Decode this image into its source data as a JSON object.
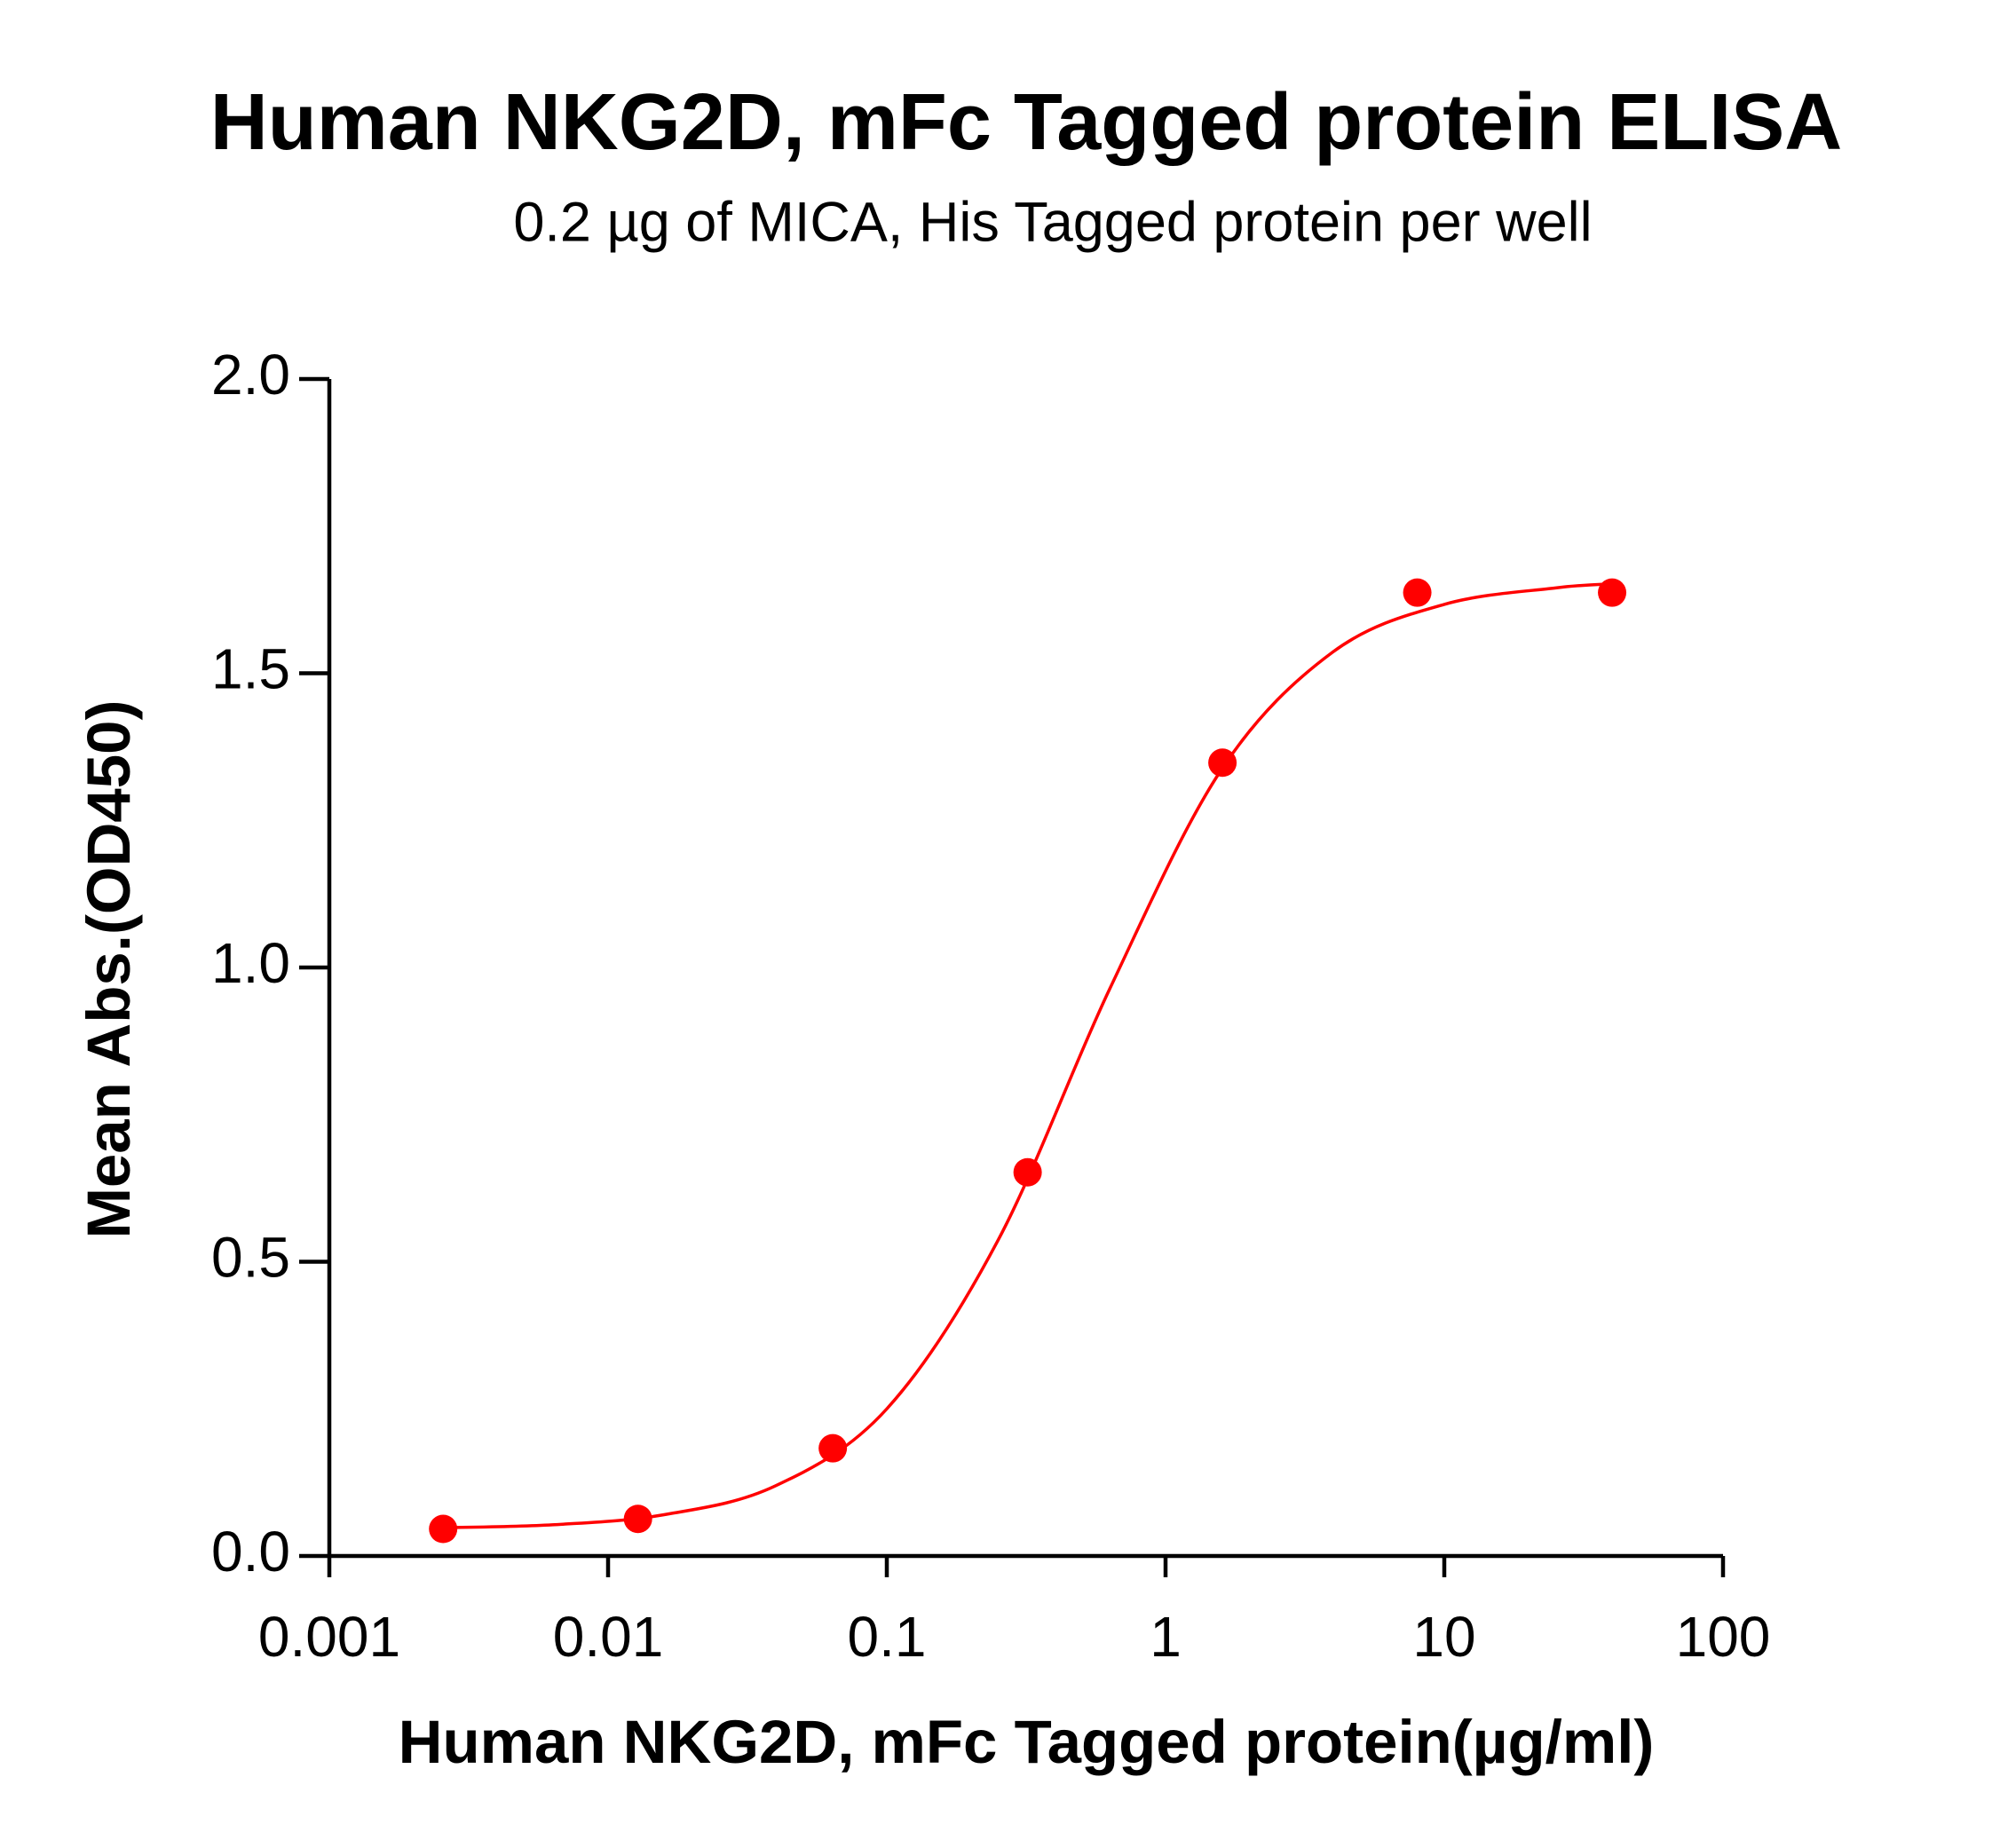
{
  "chart_data": {
    "type": "scatter",
    "title": "Human NKG2D, mFc Tagged protein ELISA",
    "subtitle": "0.2 µg of MICA, His Tagged protein per well",
    "x_label": "Human NKG2D, mFc Tagged protein(µg/ml)",
    "y_label": "Mean Abs.(OD450)",
    "x_scale": "log",
    "xlim": [
      0.001,
      100
    ],
    "xticks": [
      0.001,
      0.01,
      0.1,
      1,
      10,
      100
    ],
    "ylim": [
      0,
      2
    ],
    "yticks": [
      {
        "value": 0,
        "label": "0.0"
      },
      0.5,
      {
        "value": 1,
        "label": "1.0"
      },
      1.5,
      {
        "value": 2,
        "label": "2.0"
      }
    ],
    "grid": false,
    "series": [
      {
        "mode": "markers",
        "color": "#ff0000",
        "x": [
          0.00256,
          0.0128,
          0.064,
          0.32,
          1.6,
          8,
          40
        ],
        "values": [
          0.046,
          0.063,
          0.183,
          0.652,
          1.348,
          1.637,
          1.637
        ]
      },
      {
        "mode": "line",
        "color": "#ff0000",
        "x": [
          0.00251,
          0.00631,
          0.0158,
          0.0398,
          0.1,
          0.251,
          0.631,
          1.585,
          3.98,
          10,
          25.1,
          40
        ],
        "values": [
          0.048,
          0.053,
          0.07,
          0.119,
          0.25,
          0.537,
          0.964,
          1.336,
          1.536,
          1.617,
          1.645,
          1.652
        ]
      }
    ]
  }
}
